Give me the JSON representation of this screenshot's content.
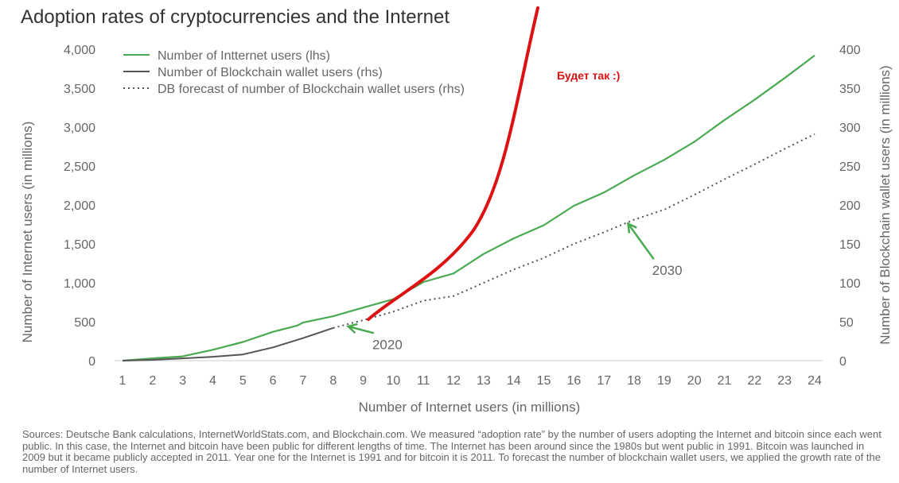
{
  "title": "Adoption rates of cryptocurrencies and the Internet",
  "source_note": "Sources: Deutsche Bank calculations, InternetWorldStats.com, and Blockchain.com. We measured “adoption rate” by the number of users adopting the Internet and bitcoin since each went public. In this case, the Internet and bitcoin have been public for different lengths of time. The Internet has been around since the 1980s but went public in 1991. Bitcoin was launched in 2009 but it became publicly accepted in 2011. Year one for the Internet is 1991 and for bitcoin it is 2011. To forecast the number of blockchain wallet users, we applied the growth rate of the number of Internet users.",
  "handwritten_note": "Будет так :)",
  "colors": {
    "internet": "#4aaa52",
    "wallet": "#555555",
    "forecast": "#555555",
    "scribble": "#dd1111",
    "axis": "#cccccc"
  },
  "chart_data": {
    "type": "line",
    "title": "Adoption rates of cryptocurrencies and the Internet",
    "xlabel": "Number of Internet users (in millions)",
    "ylabel_left": "Number of Internet users (in millions)",
    "ylabel_right": "Number of Blockchain wallet users (in millions)",
    "xlim": [
      1,
      24
    ],
    "ylim_left": [
      0,
      4000
    ],
    "ylim_right": [
      0,
      400
    ],
    "x_ticks": [
      1,
      2,
      3,
      4,
      5,
      6,
      7,
      8,
      9,
      10,
      11,
      12,
      13,
      14,
      15,
      16,
      17,
      18,
      19,
      20,
      21,
      22,
      23,
      24
    ],
    "y_ticks_left": [
      "0",
      "500",
      "1,000",
      "1,500",
      "2,000",
      "2,500",
      "3,000",
      "3,500",
      "4,000"
    ],
    "y_ticks_right": [
      "0",
      "50",
      "100",
      "150",
      "200",
      "250",
      "300",
      "350",
      "400"
    ],
    "legend_position": "top-left",
    "series": [
      {
        "name": "Number of Intternet users (lhs)",
        "axis": "left",
        "style": "solid",
        "x": [
          1,
          2,
          3,
          4,
          5,
          6,
          6.8,
          7,
          8,
          8.8,
          10,
          11,
          12,
          13,
          14,
          15,
          16,
          17,
          18,
          19,
          20,
          21,
          22,
          23,
          24
        ],
        "y": [
          0,
          30,
          55,
          140,
          240,
          370,
          450,
          490,
          570,
          660,
          790,
          1010,
          1120,
          1370,
          1570,
          1740,
          1990,
          2160,
          2380,
          2580,
          2810,
          3090,
          3350,
          3630,
          3920
        ]
      },
      {
        "name": "Number of Blockchain wallet users (rhs)",
        "axis": "right",
        "style": "solid",
        "x": [
          1,
          2,
          3,
          4,
          5,
          6,
          7,
          8
        ],
        "y": [
          0,
          1,
          3,
          5,
          8,
          17,
          29,
          42
        ]
      },
      {
        "name": "DB forecast of number of Blockchain wallet users (rhs)",
        "axis": "right",
        "style": "dotted",
        "x": [
          8,
          9,
          10,
          11,
          12,
          13,
          14,
          15,
          16,
          17,
          18,
          19,
          20,
          21,
          22,
          23,
          24
        ],
        "y": [
          42,
          52,
          63,
          77,
          83,
          100,
          117,
          132,
          150,
          165,
          181,
          194,
          213,
          233,
          252,
          272,
          291
        ]
      }
    ],
    "annotations": [
      {
        "text": "2020",
        "x": 9.3,
        "y": 15,
        "axis": "right",
        "arrow_to": [
          8.5,
          44
        ]
      },
      {
        "text": "2030",
        "x": 18.6,
        "y": 110,
        "axis": "right",
        "arrow_to": [
          17.8,
          176
        ]
      }
    ]
  }
}
